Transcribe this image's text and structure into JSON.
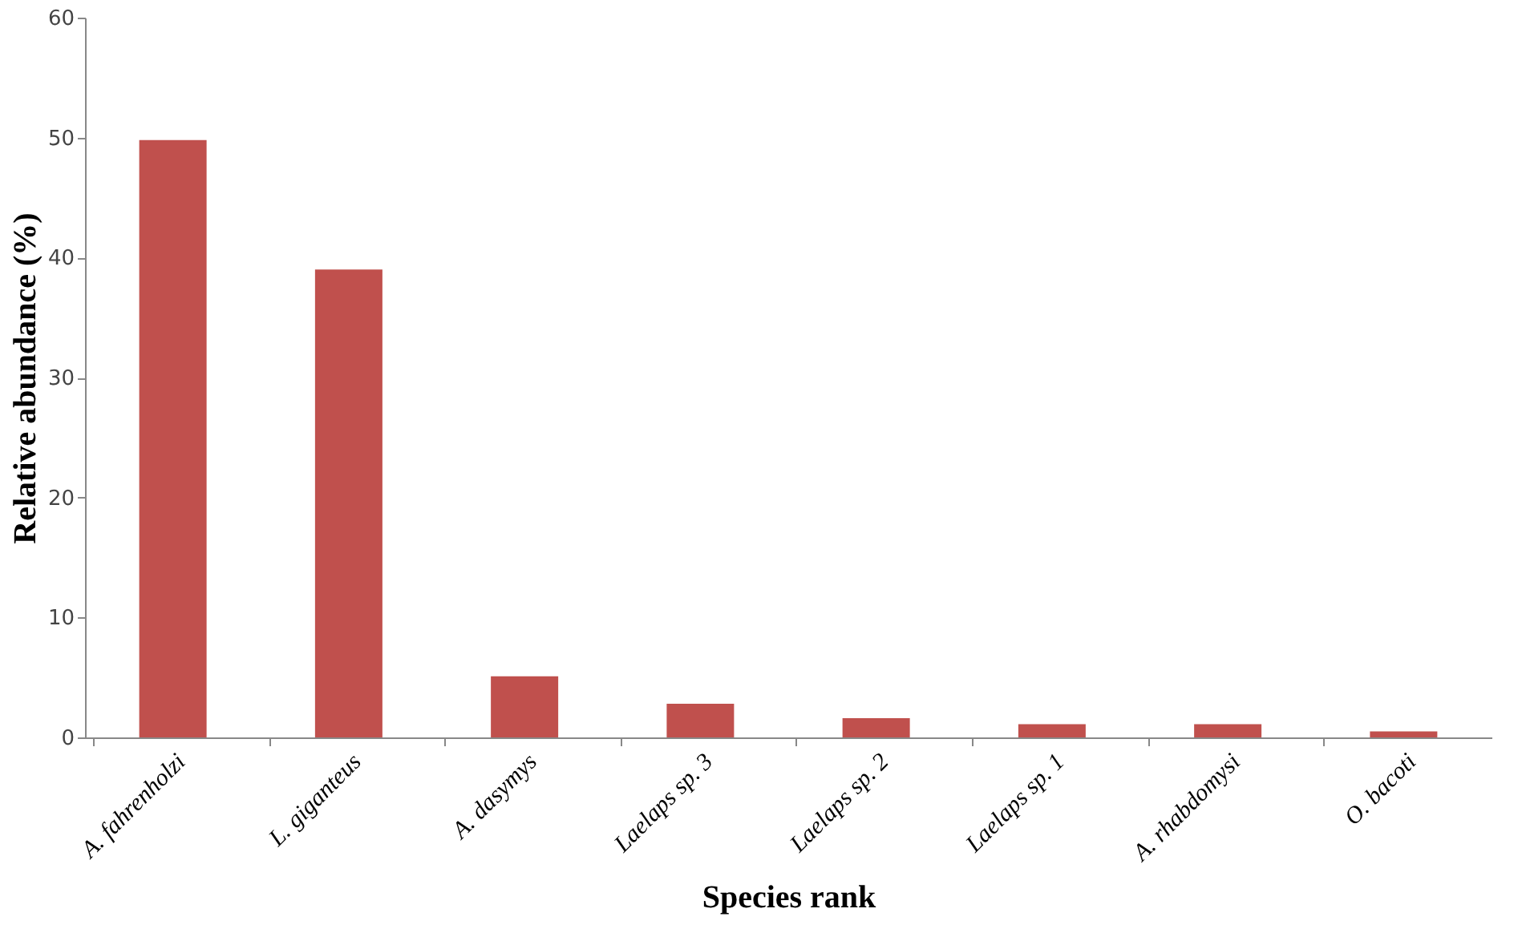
{
  "chart_data": {
    "type": "bar",
    "xlabel": "Species rank",
    "ylabel": "Relative abundance (%)",
    "categories": [
      "A. fahrenholzi",
      "L. giganteus",
      "A. dasymys",
      "Laelaps sp. 3",
      "Laelaps sp. 2",
      "Laelaps sp. 1",
      "A. rhabdomysi",
      "O. bacoti"
    ],
    "values": [
      49.8,
      39,
      5.1,
      2.8,
      1.6,
      1.1,
      1.1,
      0.5
    ],
    "color": "#c0504d",
    "ylim": [
      0,
      60
    ],
    "yticks": [
      0,
      10,
      20,
      30,
      40,
      50,
      60
    ],
    "grid": false
  }
}
